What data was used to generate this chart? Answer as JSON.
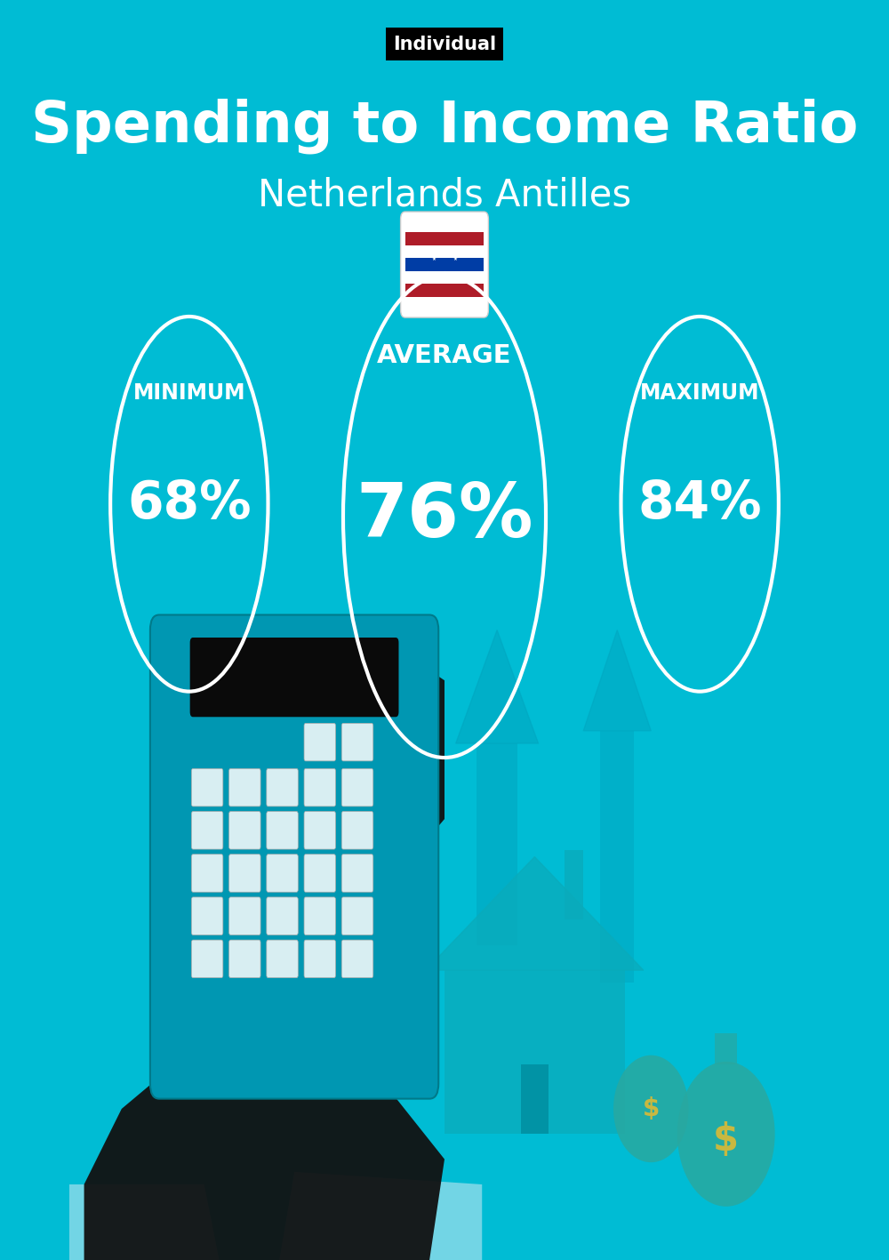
{
  "bg_color": "#00BCD4",
  "title_label": "Individual",
  "title_label_bg": "#000000",
  "title_label_color": "#ffffff",
  "main_title": "Spending to Income Ratio",
  "subtitle": "Netherlands Antilles",
  "min_label": "MINIMUM",
  "avg_label": "AVERAGE",
  "max_label": "MAXIMUM",
  "min_value": "68%",
  "avg_value": "76%",
  "max_value": "84%",
  "circle_color": "#ffffff",
  "text_color": "#ffffff",
  "circle_linewidth": 3,
  "arrow_color": "#00A5BF",
  "house_color": "#0AABBB",
  "hand_color": "#111111",
  "calc_color": "#0097B2",
  "display_color": "#0a0a0a",
  "btn_color": "#D8EEF2",
  "cuff_color": "#7FD8E8",
  "bag_color": "#29A8A0",
  "dollar_color": "#C8B840"
}
